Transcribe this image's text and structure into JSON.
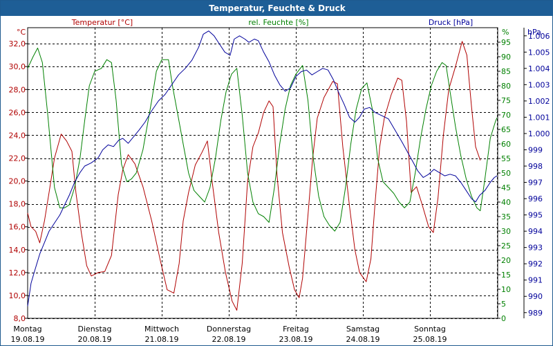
{
  "window": {
    "title": "Temperatur, Feuchte & Druck"
  },
  "colors": {
    "temperature": "#b00000",
    "humidity": "#008000",
    "pressure": "#00009a",
    "grid": "#000000",
    "titlebar": "#1e5e96"
  },
  "chart_data": {
    "type": "line",
    "title": "Temperatur, Feuchte & Druck",
    "axes": {
      "temperature": {
        "label": "Temperatur [°C]",
        "unit": "°C",
        "range": [
          8.0,
          33.4
        ],
        "ticks": [
          8.0,
          10.0,
          12.0,
          14.0,
          16.0,
          18.0,
          20.0,
          22.0,
          24.0,
          26.0,
          28.0,
          30.0,
          32.0
        ]
      },
      "humidity": {
        "label": "rel. Feuchte [%]",
        "unit": "%",
        "range": [
          0,
          100
        ],
        "ticks": [
          0,
          5,
          10,
          15,
          20,
          25,
          30,
          35,
          40,
          45,
          50,
          55,
          60,
          65,
          70,
          75,
          80,
          85,
          90,
          95
        ]
      },
      "pressure": {
        "label": "Druck [hPa]",
        "unit": "hPa",
        "range": [
          988.65,
          1006.5
        ],
        "ticks": [
          989,
          990,
          991,
          992,
          993,
          994,
          995,
          996,
          997,
          998,
          999,
          1000,
          1001,
          1002,
          1003,
          1004,
          1005,
          1006
        ]
      }
    },
    "x_range_days": [
      0,
      7
    ],
    "day_labels": [
      {
        "day": 0,
        "weekday": "Montag",
        "date": "19.08.19"
      },
      {
        "day": 1,
        "weekday": "Dienstag",
        "date": "20.08.19"
      },
      {
        "day": 2,
        "weekday": "Mittwoch",
        "date": "21.08.19"
      },
      {
        "day": 3,
        "weekday": "Donnerstag",
        "date": "22.08.19"
      },
      {
        "day": 4,
        "weekday": "Freitag",
        "date": "23.08.19"
      },
      {
        "day": 5,
        "weekday": "Samstag",
        "date": "24.08.19"
      },
      {
        "day": 6,
        "weekday": "Sonntag",
        "date": "25.08.19"
      }
    ],
    "series": [
      {
        "name": "Temperatur [°C]",
        "axis": "temperature",
        "points": [
          [
            0.0,
            17.2
          ],
          [
            0.05,
            16.0
          ],
          [
            0.12,
            15.6
          ],
          [
            0.18,
            14.6
          ],
          [
            0.25,
            16.5
          ],
          [
            0.32,
            19.0
          ],
          [
            0.4,
            22.0
          ],
          [
            0.5,
            24.1
          ],
          [
            0.58,
            23.5
          ],
          [
            0.66,
            22.6
          ],
          [
            0.72,
            19.0
          ],
          [
            0.8,
            15.5
          ],
          [
            0.88,
            12.6
          ],
          [
            0.95,
            11.7
          ],
          [
            1.05,
            12.0
          ],
          [
            1.15,
            12.1
          ],
          [
            1.25,
            13.5
          ],
          [
            1.35,
            18.8
          ],
          [
            1.42,
            21.0
          ],
          [
            1.5,
            22.3
          ],
          [
            1.6,
            21.5
          ],
          [
            1.72,
            19.5
          ],
          [
            1.85,
            16.5
          ],
          [
            1.98,
            13.0
          ],
          [
            2.08,
            10.5
          ],
          [
            2.18,
            10.2
          ],
          [
            2.26,
            12.8
          ],
          [
            2.32,
            16.5
          ],
          [
            2.4,
            19.0
          ],
          [
            2.5,
            21.4
          ],
          [
            2.6,
            22.5
          ],
          [
            2.68,
            23.5
          ],
          [
            2.75,
            20.0
          ],
          [
            2.85,
            15.5
          ],
          [
            2.95,
            12.0
          ],
          [
            3.05,
            9.5
          ],
          [
            3.12,
            8.7
          ],
          [
            3.2,
            12.8
          ],
          [
            3.28,
            20.0
          ],
          [
            3.36,
            23.0
          ],
          [
            3.44,
            24.2
          ],
          [
            3.52,
            26.0
          ],
          [
            3.6,
            27.0
          ],
          [
            3.66,
            26.5
          ],
          [
            3.72,
            20.5
          ],
          [
            3.8,
            15.5
          ],
          [
            3.9,
            12.5
          ],
          [
            3.98,
            10.5
          ],
          [
            4.05,
            9.8
          ],
          [
            4.1,
            11.5
          ],
          [
            4.18,
            17.0
          ],
          [
            4.25,
            22.0
          ],
          [
            4.32,
            25.5
          ],
          [
            4.42,
            27.3
          ],
          [
            4.55,
            28.7
          ],
          [
            4.62,
            28.5
          ],
          [
            4.7,
            23.0
          ],
          [
            4.8,
            17.8
          ],
          [
            4.88,
            14.0
          ],
          [
            4.95,
            12.0
          ],
          [
            5.05,
            11.2
          ],
          [
            5.12,
            13.2
          ],
          [
            5.18,
            18.0
          ],
          [
            5.25,
            23.0
          ],
          [
            5.32,
            25.5
          ],
          [
            5.42,
            27.5
          ],
          [
            5.52,
            29.0
          ],
          [
            5.58,
            28.8
          ],
          [
            5.65,
            25.2
          ],
          [
            5.72,
            19.0
          ],
          [
            5.8,
            19.5
          ],
          [
            5.88,
            18.0
          ],
          [
            5.98,
            16.0
          ],
          [
            6.05,
            15.5
          ],
          [
            6.12,
            18.5
          ],
          [
            6.2,
            24.0
          ],
          [
            6.28,
            28.0
          ],
          [
            6.38,
            30.0
          ],
          [
            6.48,
            32.2
          ],
          [
            6.55,
            31.0
          ],
          [
            6.62,
            26.5
          ],
          [
            6.68,
            23.0
          ],
          [
            6.75,
            21.8
          ]
        ]
      },
      {
        "name": "rel. Feuchte [%]",
        "axis": "humidity",
        "points": [
          [
            0.0,
            86
          ],
          [
            0.08,
            90
          ],
          [
            0.15,
            93
          ],
          [
            0.22,
            88
          ],
          [
            0.3,
            70
          ],
          [
            0.4,
            45
          ],
          [
            0.48,
            38
          ],
          [
            0.55,
            38
          ],
          [
            0.62,
            39
          ],
          [
            0.7,
            45
          ],
          [
            0.78,
            55
          ],
          [
            0.85,
            68
          ],
          [
            0.92,
            80
          ],
          [
            1.0,
            85
          ],
          [
            1.1,
            86
          ],
          [
            1.18,
            89
          ],
          [
            1.25,
            88
          ],
          [
            1.32,
            75
          ],
          [
            1.4,
            53
          ],
          [
            1.48,
            47
          ],
          [
            1.55,
            48
          ],
          [
            1.62,
            50
          ],
          [
            1.72,
            58
          ],
          [
            1.85,
            75
          ],
          [
            1.92,
            85
          ],
          [
            2.0,
            89
          ],
          [
            2.1,
            89
          ],
          [
            2.16,
            80
          ],
          [
            2.24,
            70
          ],
          [
            2.32,
            60
          ],
          [
            2.4,
            50
          ],
          [
            2.48,
            44
          ],
          [
            2.56,
            42
          ],
          [
            2.64,
            40
          ],
          [
            2.72,
            45
          ],
          [
            2.8,
            55
          ],
          [
            2.88,
            68
          ],
          [
            2.96,
            78
          ],
          [
            3.04,
            84
          ],
          [
            3.12,
            86
          ],
          [
            3.2,
            70
          ],
          [
            3.28,
            50
          ],
          [
            3.36,
            40
          ],
          [
            3.44,
            36
          ],
          [
            3.52,
            35
          ],
          [
            3.6,
            33
          ],
          [
            3.68,
            45
          ],
          [
            3.76,
            60
          ],
          [
            3.84,
            72
          ],
          [
            3.92,
            80
          ],
          [
            4.0,
            84
          ],
          [
            4.1,
            87
          ],
          [
            4.18,
            75
          ],
          [
            4.26,
            55
          ],
          [
            4.34,
            42
          ],
          [
            4.42,
            35
          ],
          [
            4.5,
            32
          ],
          [
            4.58,
            30
          ],
          [
            4.66,
            33
          ],
          [
            4.74,
            45
          ],
          [
            4.82,
            60
          ],
          [
            4.9,
            72
          ],
          [
            4.98,
            79
          ],
          [
            5.06,
            81
          ],
          [
            5.14,
            72
          ],
          [
            5.22,
            55
          ],
          [
            5.3,
            47
          ],
          [
            5.38,
            45
          ],
          [
            5.46,
            43
          ],
          [
            5.54,
            40
          ],
          [
            5.62,
            38
          ],
          [
            5.7,
            40
          ],
          [
            5.78,
            50
          ],
          [
            5.86,
            62
          ],
          [
            5.94,
            72
          ],
          [
            6.02,
            80
          ],
          [
            6.1,
            85
          ],
          [
            6.18,
            88
          ],
          [
            6.24,
            87
          ],
          [
            6.3,
            78
          ],
          [
            6.38,
            66
          ],
          [
            6.46,
            56
          ],
          [
            6.54,
            48
          ],
          [
            6.62,
            42
          ],
          [
            6.7,
            38
          ],
          [
            6.75,
            37
          ],
          [
            6.82,
            48
          ],
          [
            6.9,
            62
          ],
          [
            6.98,
            68
          ],
          [
            7.0,
            69
          ]
        ]
      },
      {
        "name": "Druck [hPa]",
        "axis": "pressure",
        "points": [
          [
            0.0,
            989.4
          ],
          [
            0.05,
            990.8
          ],
          [
            0.1,
            991.5
          ],
          [
            0.18,
            992.6
          ],
          [
            0.25,
            993.3
          ],
          [
            0.32,
            994.0
          ],
          [
            0.4,
            994.5
          ],
          [
            0.48,
            995.0
          ],
          [
            0.55,
            995.6
          ],
          [
            0.62,
            996.2
          ],
          [
            0.7,
            997.0
          ],
          [
            0.78,
            997.6
          ],
          [
            0.85,
            998.0
          ],
          [
            0.95,
            998.2
          ],
          [
            1.05,
            998.5
          ],
          [
            1.12,
            999.0
          ],
          [
            1.2,
            999.3
          ],
          [
            1.28,
            999.2
          ],
          [
            1.36,
            999.6
          ],
          [
            1.42,
            999.7
          ],
          [
            1.5,
            999.4
          ],
          [
            1.58,
            999.8
          ],
          [
            1.66,
            1000.2
          ],
          [
            1.75,
            1000.7
          ],
          [
            1.85,
            1001.4
          ],
          [
            1.95,
            1002.0
          ],
          [
            2.05,
            1002.4
          ],
          [
            2.15,
            1003.0
          ],
          [
            2.25,
            1003.6
          ],
          [
            2.35,
            1004.0
          ],
          [
            2.45,
            1004.5
          ],
          [
            2.55,
            1005.3
          ],
          [
            2.62,
            1006.1
          ],
          [
            2.7,
            1006.3
          ],
          [
            2.78,
            1006.0
          ],
          [
            2.86,
            1005.5
          ],
          [
            2.94,
            1005.0
          ],
          [
            3.02,
            1004.8
          ],
          [
            3.08,
            1005.8
          ],
          [
            3.16,
            1006.0
          ],
          [
            3.24,
            1005.8
          ],
          [
            3.3,
            1005.6
          ],
          [
            3.38,
            1005.8
          ],
          [
            3.44,
            1005.7
          ],
          [
            3.52,
            1005.0
          ],
          [
            3.6,
            1004.4
          ],
          [
            3.68,
            1003.6
          ],
          [
            3.76,
            1003.0
          ],
          [
            3.84,
            1002.6
          ],
          [
            3.92,
            1002.8
          ],
          [
            4.0,
            1003.5
          ],
          [
            4.08,
            1003.8
          ],
          [
            4.16,
            1003.9
          ],
          [
            4.24,
            1003.6
          ],
          [
            4.32,
            1003.8
          ],
          [
            4.4,
            1004.0
          ],
          [
            4.48,
            1003.9
          ],
          [
            4.56,
            1003.3
          ],
          [
            4.64,
            1002.5
          ],
          [
            4.72,
            1001.8
          ],
          [
            4.8,
            1001.0
          ],
          [
            4.88,
            1000.7
          ],
          [
            4.95,
            1001.0
          ],
          [
            5.02,
            1001.5
          ],
          [
            5.1,
            1001.6
          ],
          [
            5.18,
            1001.3
          ],
          [
            5.28,
            1001.1
          ],
          [
            5.38,
            1000.9
          ],
          [
            5.48,
            1000.2
          ],
          [
            5.58,
            999.5
          ],
          [
            5.66,
            998.9
          ],
          [
            5.74,
            998.3
          ],
          [
            5.82,
            997.7
          ],
          [
            5.9,
            997.3
          ],
          [
            5.98,
            997.5
          ],
          [
            6.06,
            997.8
          ],
          [
            6.14,
            997.6
          ],
          [
            6.22,
            997.4
          ],
          [
            6.3,
            997.5
          ],
          [
            6.38,
            997.4
          ],
          [
            6.46,
            997.0
          ],
          [
            6.54,
            996.5
          ],
          [
            6.62,
            996.0
          ],
          [
            6.68,
            995.8
          ],
          [
            6.74,
            996.2
          ],
          [
            6.82,
            996.5
          ],
          [
            6.9,
            997.0
          ],
          [
            6.96,
            997.3
          ],
          [
            7.0,
            997.4
          ]
        ]
      }
    ]
  }
}
